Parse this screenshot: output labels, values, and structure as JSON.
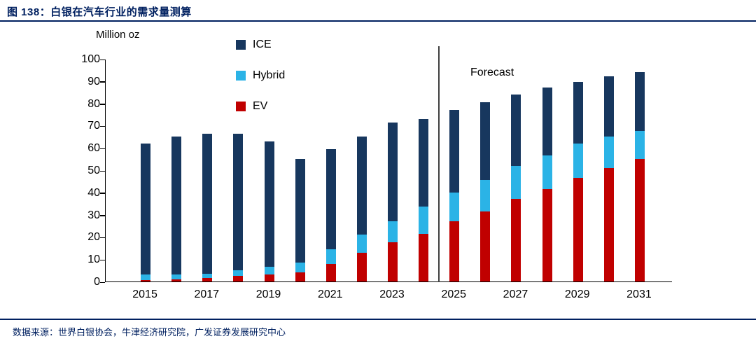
{
  "header": {
    "title": "图 138：白银在汽车行业的需求量测算"
  },
  "footer": {
    "source": "数据来源：世界白银协会，牛津经济研究院，广发证券发展研究中心"
  },
  "colors": {
    "accent_navy": "#002060",
    "ice": "#17375E",
    "hybrid": "#2BB3E6",
    "ev": "#C00000",
    "forecast_line": "#404040"
  },
  "chart_data": {
    "type": "bar",
    "stacked": true,
    "title": "图 138：白银在汽车行业的需求量测算",
    "unit_label": "Million oz",
    "forecast_label": "Forecast",
    "forecast_boundary_after": "2024",
    "ylim": [
      0,
      100
    ],
    "ytick_step": 10,
    "grid": false,
    "legend_position": "top-left-vertical",
    "categories": [
      "2015",
      "2016",
      "2017",
      "2018",
      "2019",
      "2020",
      "2021",
      "2022",
      "2023",
      "2024",
      "2025",
      "2026",
      "2027",
      "2028",
      "2029",
      "2030",
      "2031"
    ],
    "xtick_labels": [
      "2015",
      "2017",
      "2019",
      "2021",
      "2023",
      "2025",
      "2027",
      "2029",
      "2031"
    ],
    "xtick_indices": [
      0,
      2,
      4,
      6,
      8,
      10,
      12,
      14,
      16
    ],
    "series": [
      {
        "name": "EV",
        "color": "#C00000",
        "values": [
          0.5,
          1,
          1.5,
          2.5,
          3,
          4,
          8,
          13,
          17.5,
          21.5,
          27,
          31.5,
          37,
          41.5,
          46.5,
          51,
          55
        ]
      },
      {
        "name": "Hybrid",
        "color": "#2BB3E6",
        "values": [
          2.5,
          2,
          2,
          2.5,
          3.5,
          4.5,
          6.5,
          8,
          9.5,
          12,
          13,
          14,
          15,
          15,
          15.5,
          14,
          12.5
        ]
      },
      {
        "name": "ICE",
        "color": "#17375E",
        "values": [
          59,
          62,
          63,
          61.5,
          56.5,
          46.5,
          45,
          44,
          44.5,
          39.5,
          37,
          35,
          32,
          30.5,
          27.5,
          27,
          26.5
        ]
      }
    ],
    "legend_order": [
      "ICE",
      "Hybrid",
      "EV"
    ],
    "totals": [
      62,
      65,
      66.5,
      66.5,
      63,
      55,
      59.5,
      65,
      71.5,
      73,
      77,
      80.5,
      84,
      87,
      89.5,
      92,
      94
    ]
  }
}
